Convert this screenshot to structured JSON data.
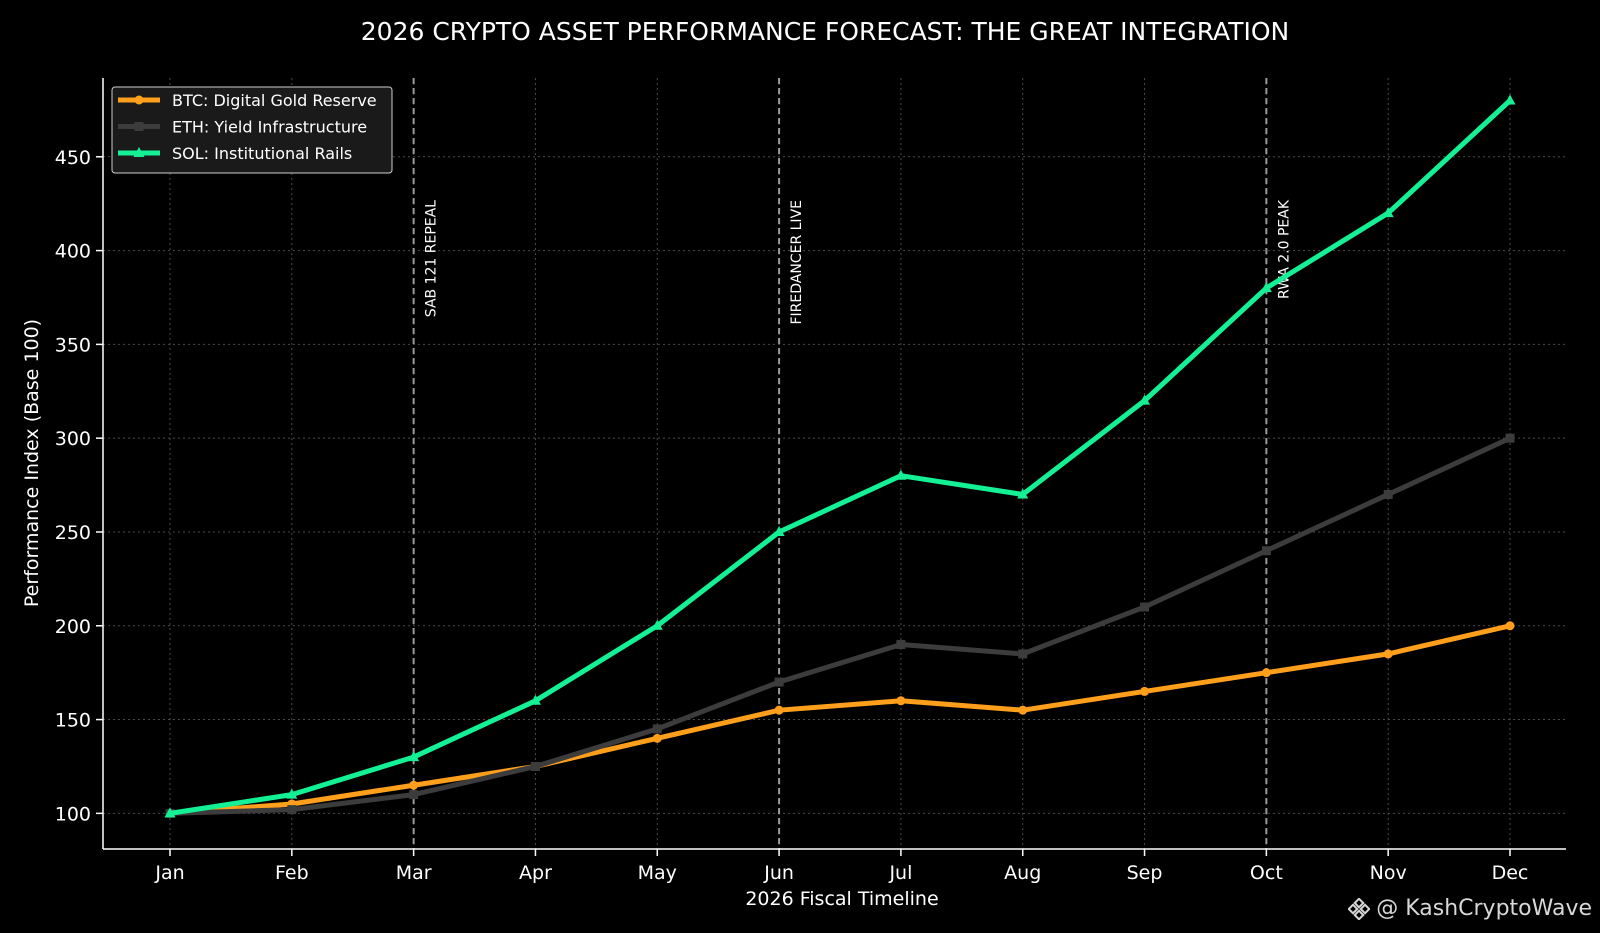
{
  "chart_data": {
    "type": "line",
    "title": "2026 CRYPTO ASSET PERFORMANCE FORECAST: THE GREAT INTEGRATION",
    "xlabel": "2026 Fiscal Timeline",
    "ylabel": "Performance Index (Base 100)",
    "categories": [
      "Jan",
      "Feb",
      "Mar",
      "Apr",
      "May",
      "Jun",
      "Jul",
      "Aug",
      "Sep",
      "Oct",
      "Nov",
      "Dec"
    ],
    "yticks": [
      100,
      150,
      200,
      250,
      300,
      350,
      400,
      450
    ],
    "ylim": [
      81,
      492
    ],
    "grid": true,
    "legend_position": "top-left",
    "series": [
      {
        "name": "BTC: Digital Gold Reserve",
        "color": "#ff9f1c",
        "marker": "circle",
        "values": [
          100,
          105,
          115,
          125,
          140,
          155,
          160,
          155,
          165,
          175,
          185,
          200
        ]
      },
      {
        "name": "ETH: Yield Infrastructure",
        "color": "#3c3c3c",
        "marker": "square",
        "values": [
          100,
          102,
          110,
          125,
          145,
          170,
          190,
          185,
          210,
          240,
          270,
          300
        ]
      },
      {
        "name": "SOL: Institutional Rails",
        "color": "#14f195",
        "marker": "triangle",
        "values": [
          100,
          110,
          130,
          160,
          200,
          250,
          280,
          270,
          320,
          380,
          420,
          480
        ]
      }
    ],
    "annotations": [
      {
        "x": "Mar",
        "label": "SAB 121 REPEAL"
      },
      {
        "x": "Jun",
        "label": "FIREDANCER LIVE"
      },
      {
        "x": "Oct",
        "label": "RWA 2.0 PEAK"
      }
    ]
  },
  "watermark": {
    "text": "@ KashCryptoWave",
    "icon": "binance-diamond-icon"
  }
}
